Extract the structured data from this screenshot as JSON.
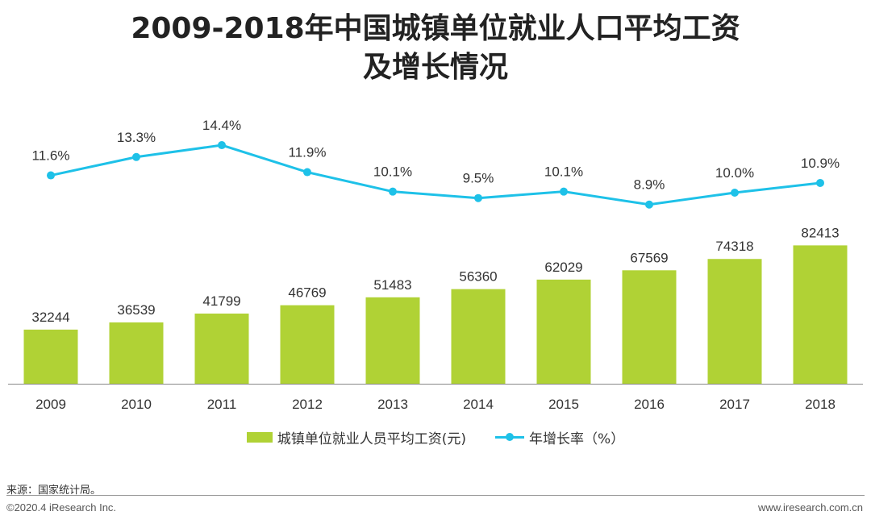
{
  "title_line1": "2009-2018年中国城镇单位就业人口平均工资",
  "title_line2": "及增长情况",
  "chart_data": {
    "type": "bar",
    "categories": [
      "2009",
      "2010",
      "2011",
      "2012",
      "2013",
      "2014",
      "2015",
      "2016",
      "2017",
      "2018"
    ],
    "series": [
      {
        "name": "城镇单位就业人员平均工资(元)",
        "type": "bar",
        "values": [
          32244,
          36539,
          41799,
          46769,
          51483,
          56360,
          62029,
          67569,
          74318,
          82413
        ],
        "color": "#b0d235"
      },
      {
        "name": "年增长率（%）",
        "type": "line",
        "values": [
          11.6,
          13.3,
          14.4,
          11.9,
          10.1,
          9.5,
          10.1,
          8.9,
          10.0,
          10.9
        ],
        "labels": [
          "11.6%",
          "13.3%",
          "14.4%",
          "11.9%",
          "10.1%",
          "9.5%",
          "10.1%",
          "8.9%",
          "10.0%",
          "10.9%"
        ],
        "color": "#1ec1e8"
      }
    ],
    "ylim_bar": [
      0,
      85000
    ],
    "ylim_line": [
      0,
      16
    ],
    "grid": false,
    "legend_position": "bottom"
  },
  "legend": {
    "bar_label": "城镇单位就业人员平均工资(元)",
    "line_label": "年增长率（%）"
  },
  "source": "来源：国家统计局。",
  "copyright": "©2020.4 iResearch Inc.",
  "website": "www.iresearch.com.cn"
}
